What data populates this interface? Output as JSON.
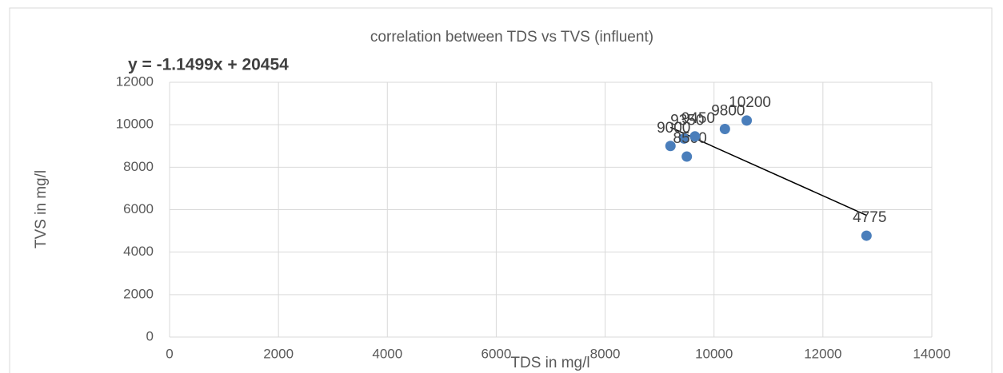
{
  "chart_data": {
    "type": "scatter",
    "title": "correlation between TDS vs TVS  (influent)",
    "annotation": "y = -1.1499x + 20454",
    "x_label": "TDS in mg/l",
    "y_label": "TVS in mg/l",
    "x": [
      9200,
      9450,
      9500,
      9650,
      10200,
      10600,
      12800
    ],
    "values": [
      9000,
      9350,
      8500,
      9450,
      9800,
      10200,
      4775
    ],
    "color": "#4a7ebb",
    "trendline": true,
    "xlim": [
      0,
      14000
    ],
    "xticks": [
      0,
      2000,
      4000,
      6000,
      8000,
      10000,
      12000,
      14000
    ],
    "ylim": [
      0,
      12000
    ],
    "yticks": [
      0,
      2000,
      4000,
      6000,
      8000,
      10000,
      12000
    ],
    "grid": true
  }
}
